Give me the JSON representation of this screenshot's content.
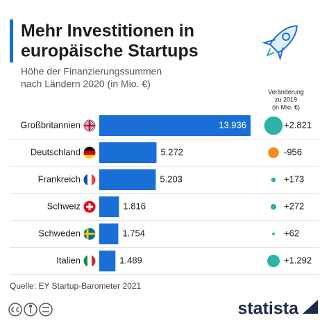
{
  "chart_data": {
    "type": "bar",
    "title": [
      "Mehr Investitionen in",
      "europäische Startups"
    ],
    "subtitle": [
      "Höhe der Finanzierungssummen",
      "nach Ländern 2020 (in Mio. €)"
    ],
    "categories": [
      "Großbritannien",
      "Deutschland",
      "Frankreich",
      "Schweiz",
      "Schweden",
      "Italien"
    ],
    "values": [
      13936,
      5272,
      5203,
      1816,
      1754,
      1489
    ],
    "value_labels": [
      "13.936",
      "5.272",
      "5.203",
      "1.816",
      "1.754",
      "1.489"
    ],
    "color": "#1a6fd6",
    "change": {
      "title": [
        "Veränderung",
        "zu 2019",
        "(in Mio. €)"
      ],
      "values": [
        2821,
        -956,
        173,
        272,
        62,
        1292
      ],
      "value_labels": [
        "+2.821",
        "-956",
        "+173",
        "+272",
        "+62",
        "+1.292"
      ],
      "colors": {
        "positive": "#2ab3a6",
        "negative": "#f28c1e"
      }
    },
    "source": "Quelle: EY Startup-Barometer 2021",
    "brand": "statista"
  }
}
